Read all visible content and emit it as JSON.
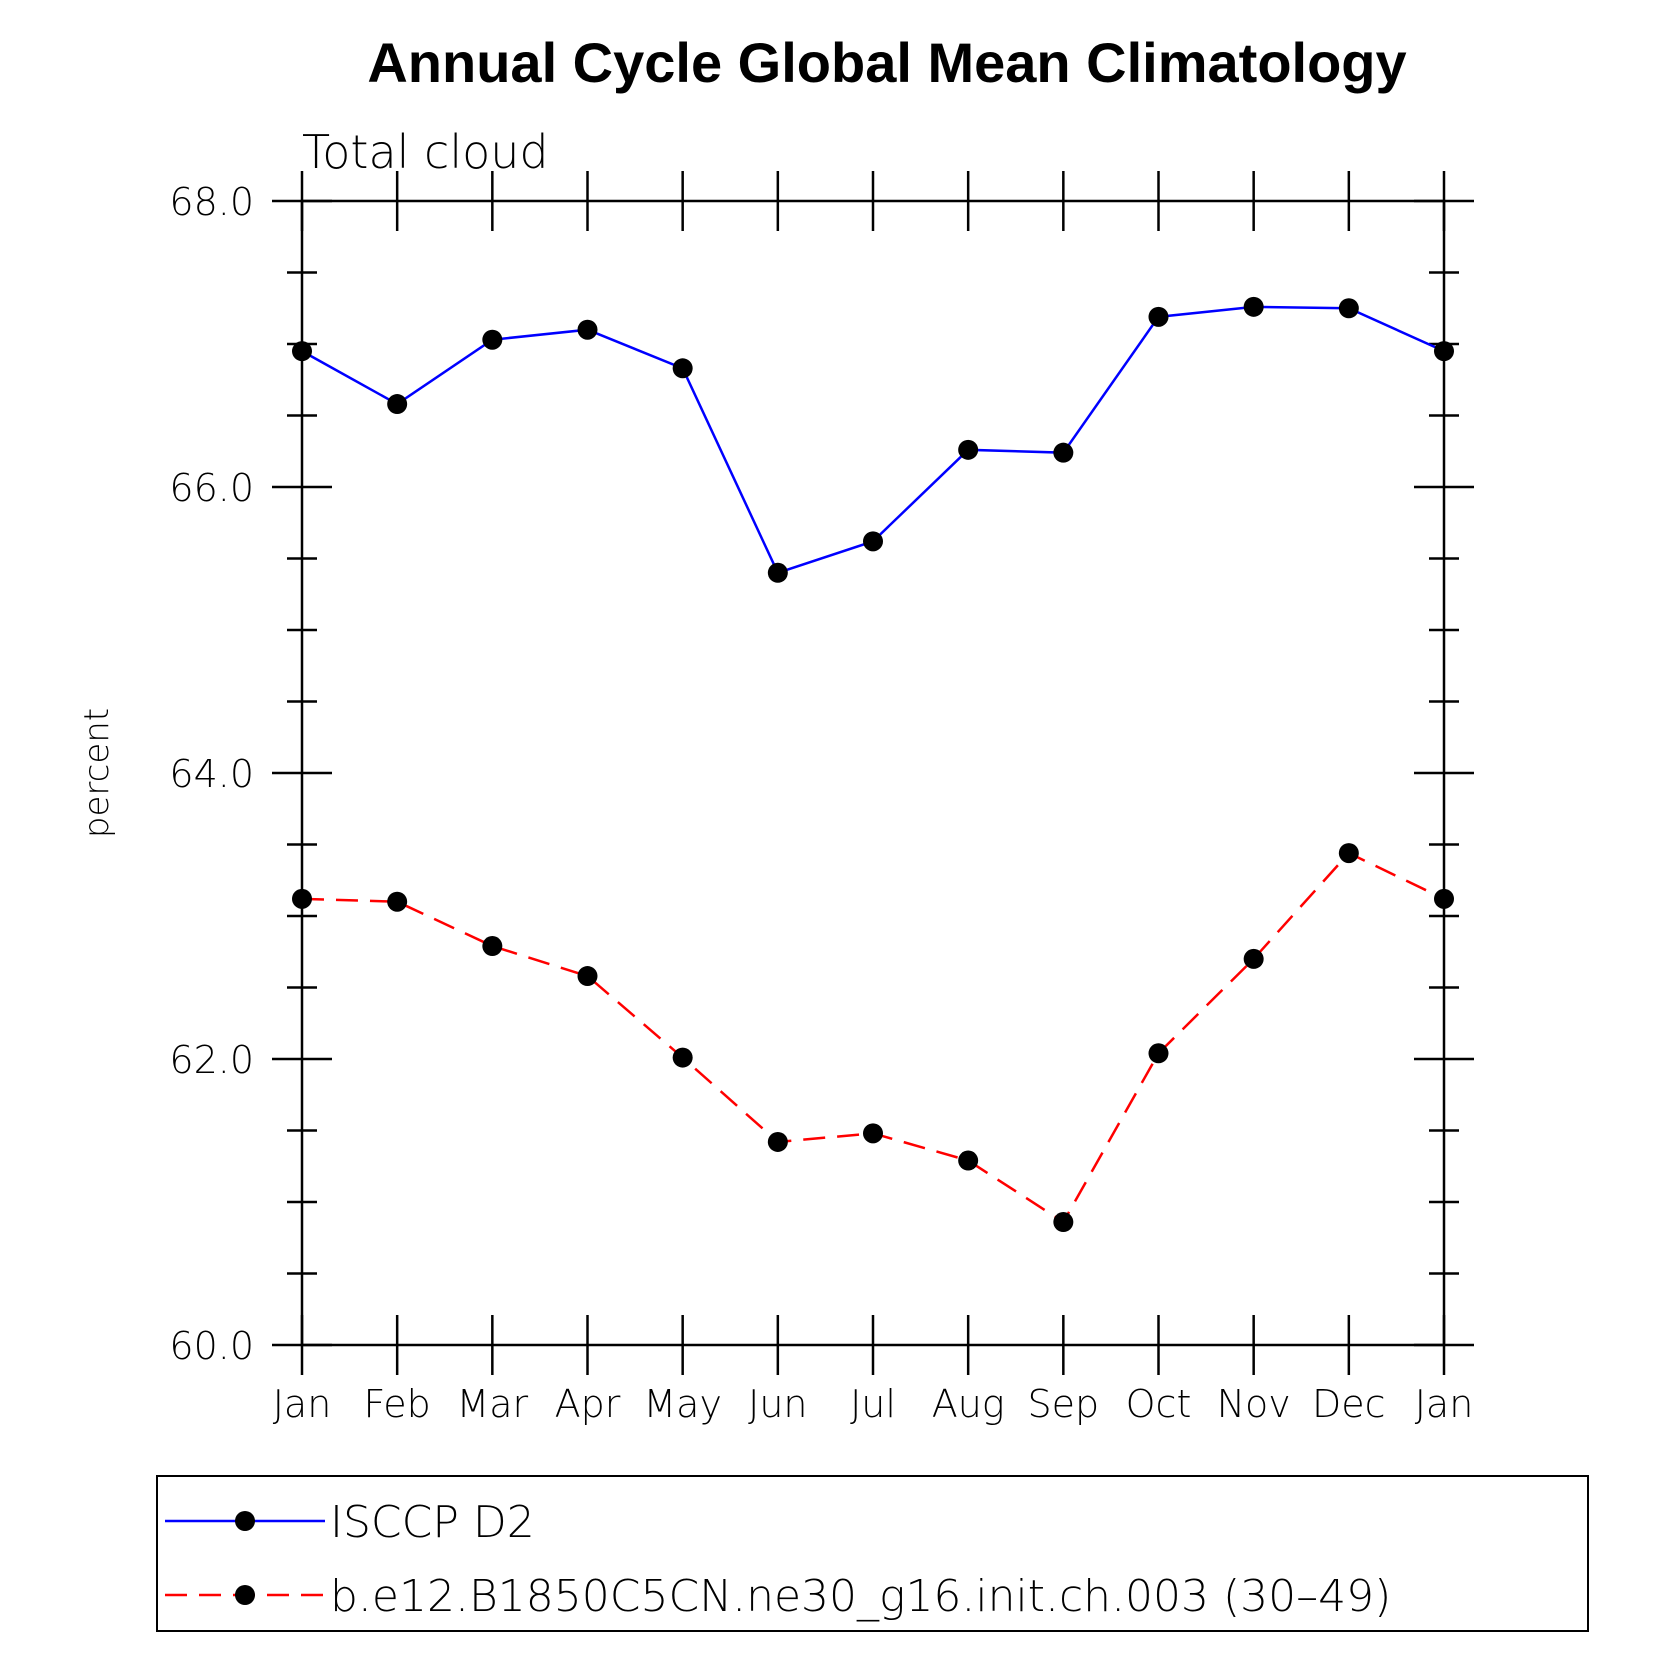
{
  "chart_data": {
    "type": "line",
    "title": "Annual Cycle Global Mean Climatology",
    "subtitle": "Total cloud",
    "xlabel": "",
    "ylabel": "percent",
    "categories": [
      "Jan",
      "Feb",
      "Mar",
      "Apr",
      "May",
      "Jun",
      "Jul",
      "Aug",
      "Sep",
      "Oct",
      "Nov",
      "Dec",
      "Jan"
    ],
    "ylim": [
      60.0,
      68.0
    ],
    "yticks": [
      60.0,
      62.0,
      64.0,
      66.0,
      68.0
    ],
    "ytick_labels": [
      "60.0",
      "62.0",
      "64.0",
      "66.0",
      "68.0"
    ],
    "grid": false,
    "legend_position": "bottom",
    "series": [
      {
        "name": "ISCCP D2",
        "color": "#0000ff",
        "dash": "solid",
        "marker": "dot",
        "values": [
          66.95,
          66.58,
          67.03,
          67.1,
          66.83,
          65.4,
          65.62,
          66.26,
          66.24,
          67.19,
          67.26,
          67.25,
          66.95
        ]
      },
      {
        "name": "b.e12.B1850C5CN.ne30_g16.init.ch.003 (30–49)",
        "color": "#ff0000",
        "dash": "dashed",
        "marker": "dot",
        "values": [
          63.12,
          63.1,
          62.79,
          62.58,
          62.01,
          61.42,
          61.48,
          61.29,
          60.86,
          62.04,
          62.7,
          63.44,
          63.12
        ]
      }
    ]
  }
}
